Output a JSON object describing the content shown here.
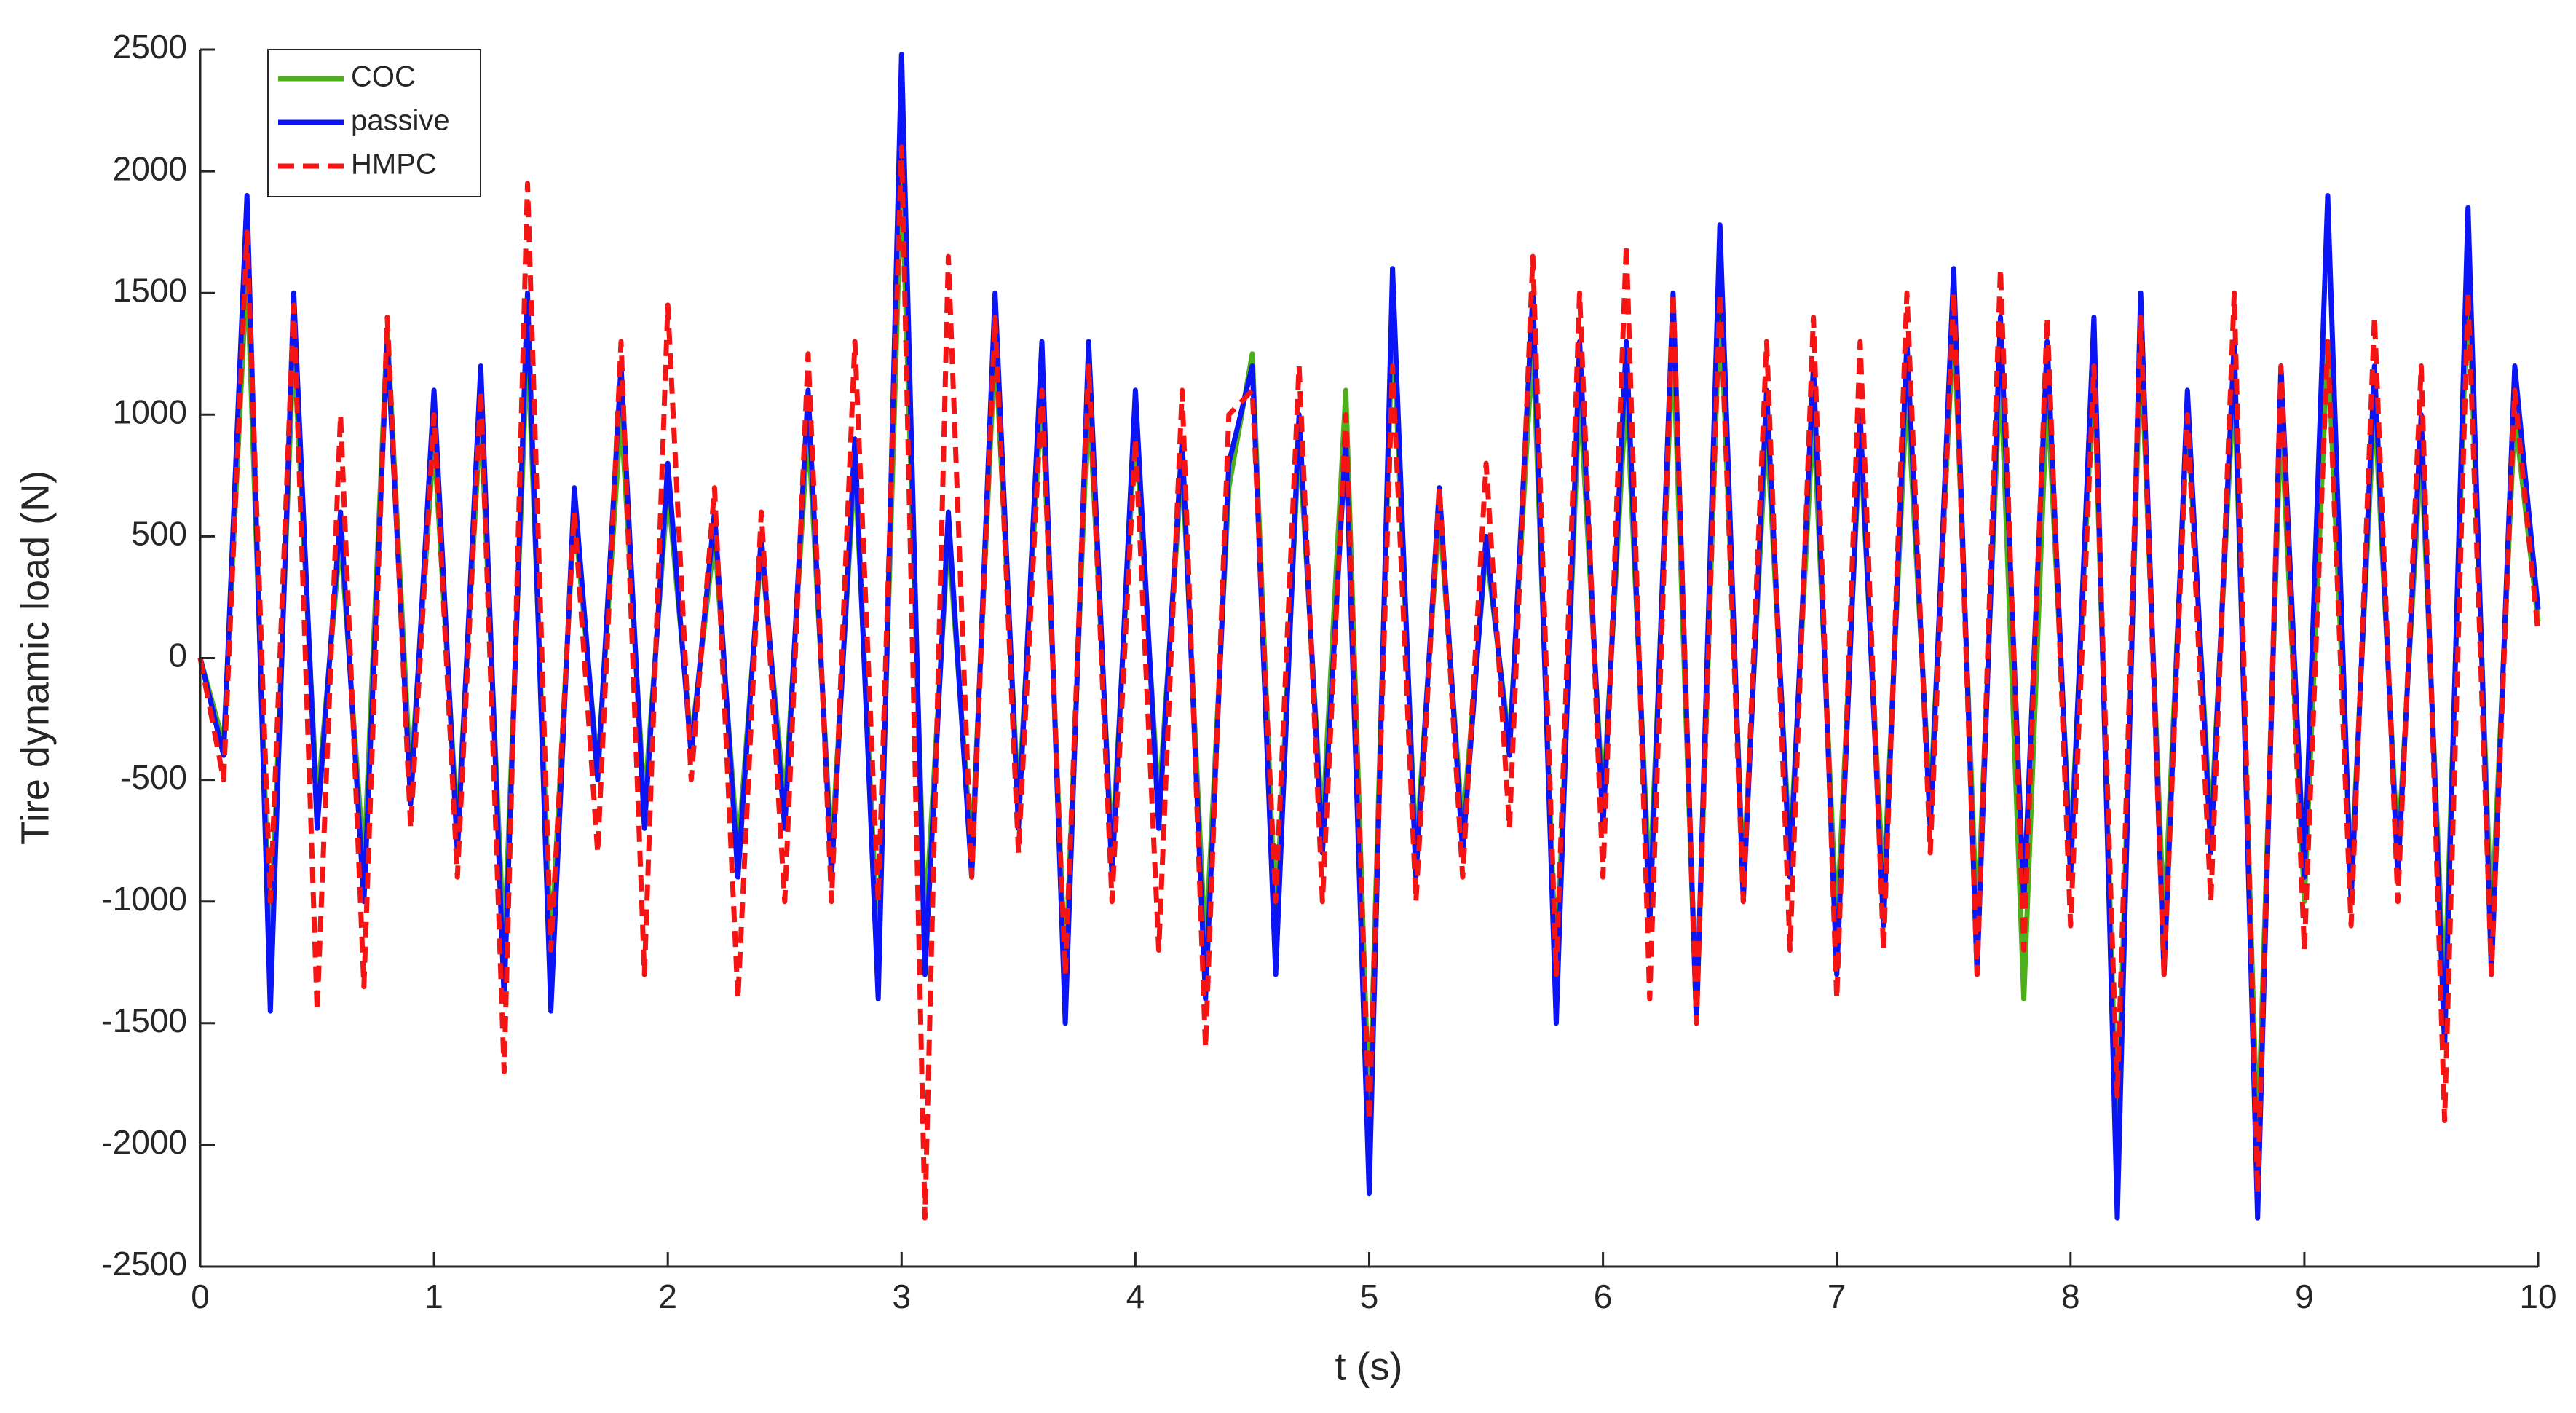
{
  "chart_data": {
    "type": "line",
    "xlabel": "t (s)",
    "ylabel": "Tire dynamic load (N)",
    "x": [
      0,
      0.1,
      0.2,
      0.3,
      0.4,
      0.5,
      0.6,
      0.7,
      0.8,
      0.9,
      1,
      1.1,
      1.2,
      1.3,
      1.4,
      1.5,
      1.6,
      1.7,
      1.8,
      1.9,
      2,
      2.1,
      2.2,
      2.3,
      2.4,
      2.5,
      2.6,
      2.7,
      2.8,
      2.9,
      3,
      3.1,
      3.2,
      3.3,
      3.4,
      3.5,
      3.6,
      3.7,
      3.8,
      3.9,
      4,
      4.1,
      4.2,
      4.3,
      4.4,
      4.5,
      4.6,
      4.7,
      4.8,
      4.9,
      5,
      5.1,
      5.2,
      5.3,
      5.4,
      5.5,
      5.6,
      5.7,
      5.8,
      5.9,
      6,
      6.1,
      6.2,
      6.3,
      6.4,
      6.5,
      6.6,
      6.7,
      6.8,
      6.9,
      7,
      7.1,
      7.2,
      7.3,
      7.4,
      7.5,
      7.6,
      7.7,
      7.8,
      7.9,
      8,
      8.1,
      8.2,
      8.3,
      8.4,
      8.5,
      8.6,
      8.7,
      8.8,
      8.9,
      9,
      9.1,
      9.2,
      9.3,
      9.4,
      9.5,
      9.6,
      9.7,
      9.8,
      9.9,
      10
    ],
    "series": [
      {
        "name": "COC",
        "color": "#4daf1a",
        "dash": "solid",
        "values": [
          0,
          -350,
          1600,
          -1200,
          1300,
          -600,
          500,
          -850,
          1350,
          -500,
          900,
          -700,
          1000,
          -1200,
          1300,
          -1200,
          600,
          -450,
          1000,
          -600,
          700,
          -350,
          500,
          -800,
          450,
          -600,
          950,
          -800,
          800,
          -1200,
          2000,
          -1100,
          500,
          -800,
          1300,
          -600,
          1100,
          -1300,
          1100,
          -800,
          950,
          -600,
          800,
          -1200,
          700,
          1250,
          -1100,
          900,
          -700,
          1100,
          -1900,
          1400,
          -800,
          600,
          -700,
          450,
          -350,
          1300,
          -1300,
          1100,
          -600,
          1100,
          -950,
          1300,
          -1500,
          1500,
          -900,
          950,
          -800,
          1000,
          -1100,
          900,
          -950,
          1100,
          -600,
          1400,
          -1100,
          1200,
          -1400,
          1100,
          -800,
          1200,
          -2000,
          1300,
          -1100,
          1000,
          -700,
          1150,
          -2000,
          1000,
          -1000,
          1300,
          -900,
          1050,
          -800,
          850,
          -1400,
          1600,
          -1100,
          1000,
          150
        ]
      },
      {
        "name": "passive",
        "color": "#0a14f5",
        "dash": "solid",
        "values": [
          0,
          -400,
          1900,
          -1450,
          1500,
          -700,
          600,
          -1000,
          1300,
          -600,
          1100,
          -800,
          1200,
          -1400,
          1500,
          -1450,
          700,
          -500,
          1200,
          -700,
          800,
          -400,
          600,
          -900,
          500,
          -700,
          1100,
          -900,
          900,
          -1400,
          2480,
          -1300,
          600,
          -900,
          1500,
          -700,
          1300,
          -1500,
          1300,
          -900,
          1100,
          -700,
          900,
          -1400,
          800,
          1200,
          -1300,
          1000,
          -800,
          900,
          -2200,
          1600,
          -900,
          700,
          -800,
          500,
          -400,
          1500,
          -1500,
          1300,
          -700,
          1300,
          -1100,
          1500,
          -1500,
          1780,
          -1000,
          1100,
          -900,
          1200,
          -1300,
          1000,
          -1100,
          1300,
          -700,
          1600,
          -1300,
          1400,
          -1000,
          1300,
          -900,
          1400,
          -2300,
          1500,
          -1300,
          1100,
          -800,
          1300,
          -2300,
          1200,
          -900,
          1900,
          -1000,
          1200,
          -900,
          1000,
          -1600,
          1850,
          -1300,
          1200,
          200
        ]
      },
      {
        "name": "HMPC",
        "color": "#f51414",
        "dash": "dashed",
        "values": [
          0,
          -500,
          1750,
          -1000,
          1450,
          -1450,
          1000,
          -1350,
          1400,
          -700,
          1000,
          -900,
          1100,
          -1700,
          1950,
          -1200,
          600,
          -800,
          1300,
          -1300,
          1450,
          -500,
          700,
          -1400,
          600,
          -1000,
          1250,
          -1000,
          1300,
          -1000,
          2100,
          -2300,
          1650,
          -900,
          1400,
          -800,
          1100,
          -1300,
          1200,
          -1000,
          900,
          -1200,
          1100,
          -1600,
          1000,
          1100,
          -1000,
          1200,
          -1000,
          1000,
          -1900,
          1200,
          -1000,
          700,
          -900,
          800,
          -700,
          1650,
          -1300,
          1500,
          -900,
          1700,
          -1400,
          1500,
          -1500,
          1500,
          -1000,
          1300,
          -1200,
          1400,
          -1400,
          1300,
          -1200,
          1500,
          -800,
          1500,
          -1300,
          1600,
          -1200,
          1400,
          -1100,
          1200,
          -1800,
          1400,
          -1300,
          1000,
          -1000,
          1500,
          -2200,
          1200,
          -1200,
          1300,
          -1100,
          1400,
          -1000,
          1200,
          -1900,
          1500,
          -1300,
          1100,
          100
        ]
      }
    ],
    "xlim": [
      0,
      10
    ],
    "xticks": [
      0,
      1,
      2,
      3,
      4,
      5,
      6,
      7,
      8,
      9,
      10
    ],
    "ylim": [
      -2500,
      2500
    ],
    "yticks": [
      -2500,
      -2000,
      -1500,
      -1000,
      -500,
      0,
      500,
      1000,
      1500,
      2000,
      2500
    ],
    "legend": "northwest"
  }
}
